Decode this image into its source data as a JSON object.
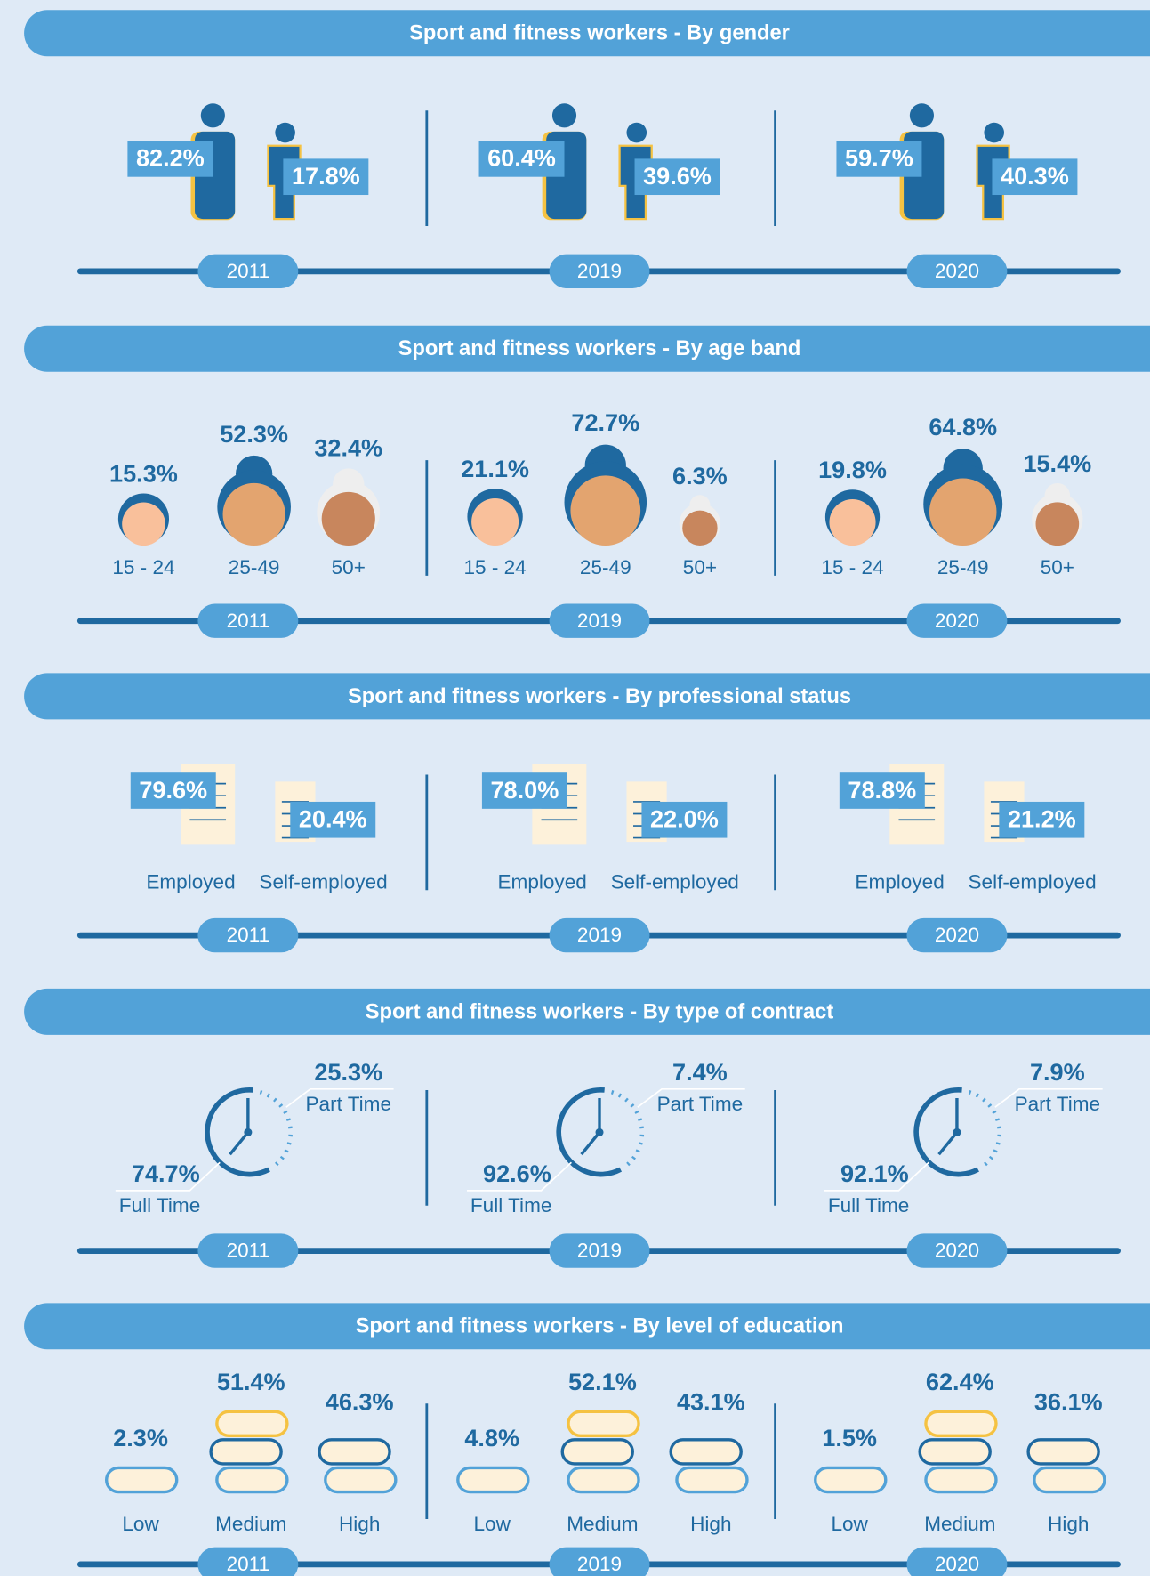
{
  "sections": [
    {
      "title": "Sport and fitness workers - By gender",
      "years": [
        {
          "year": "2011",
          "items": [
            {
              "value": "82.2%"
            },
            {
              "value": "17.8%"
            }
          ]
        },
        {
          "year": "2019",
          "items": [
            {
              "value": "60.4%"
            },
            {
              "value": "39.6%"
            }
          ]
        },
        {
          "year": "2020",
          "items": [
            {
              "value": "59.7%"
            },
            {
              "value": "40.3%"
            }
          ]
        }
      ]
    },
    {
      "title": "Sport and fitness workers - By age band",
      "years": [
        {
          "year": "2011",
          "items": [
            {
              "value": "15.3%",
              "label": "15 - 24"
            },
            {
              "value": "52.3%",
              "label": "25-49"
            },
            {
              "value": "32.4%",
              "label": "50+"
            }
          ]
        },
        {
          "year": "2019",
          "items": [
            {
              "value": "21.1%",
              "label": "15 - 24"
            },
            {
              "value": "72.7%",
              "label": "25-49"
            },
            {
              "value": "6.3%",
              "label": "50+"
            }
          ]
        },
        {
          "year": "2020",
          "items": [
            {
              "value": "19.8%",
              "label": "15 - 24"
            },
            {
              "value": "64.8%",
              "label": "25-49"
            },
            {
              "value": "15.4%",
              "label": "50+"
            }
          ]
        }
      ]
    },
    {
      "title": "Sport and fitness workers - By professional status",
      "years": [
        {
          "year": "2011",
          "items": [
            {
              "value": "79.6%",
              "label": "Employed"
            },
            {
              "value": "20.4%",
              "label": "Self-employed"
            }
          ]
        },
        {
          "year": "2019",
          "items": [
            {
              "value": "78.0%",
              "label": "Employed"
            },
            {
              "value": "22.0%",
              "label": "Self-employed"
            }
          ]
        },
        {
          "year": "2020",
          "items": [
            {
              "value": "78.8%",
              "label": "Employed"
            },
            {
              "value": "21.2%",
              "label": "Self-employed"
            }
          ]
        }
      ]
    },
    {
      "title": "Sport and fitness workers - By type of contract",
      "years": [
        {
          "year": "2011",
          "items": [
            {
              "value": "74.7%",
              "label": "Full Time"
            },
            {
              "value": "25.3%",
              "label": "Part Time"
            }
          ]
        },
        {
          "year": "2019",
          "items": [
            {
              "value": "92.6%",
              "label": "Full Time"
            },
            {
              "value": "7.4%",
              "label": "Part Time"
            }
          ]
        },
        {
          "year": "2020",
          "items": [
            {
              "value": "92.1%",
              "label": "Full Time"
            },
            {
              "value": "7.9%",
              "label": "Part Time"
            }
          ]
        }
      ]
    },
    {
      "title": "Sport and fitness workers - By level of education",
      "years": [
        {
          "year": "2011",
          "items": [
            {
              "value": "2.3%",
              "label": "Low"
            },
            {
              "value": "51.4%",
              "label": "Medium"
            },
            {
              "value": "46.3%",
              "label": "High"
            }
          ]
        },
        {
          "year": "2019",
          "items": [
            {
              "value": "4.8%",
              "label": "Low"
            },
            {
              "value": "52.1%",
              "label": "Medium"
            },
            {
              "value": "43.1%",
              "label": "High"
            }
          ]
        },
        {
          "year": "2020",
          "items": [
            {
              "value": "1.5%",
              "label": "Low"
            },
            {
              "value": "62.4%",
              "label": "Medium"
            },
            {
              "value": "36.1%",
              "label": "High"
            }
          ]
        }
      ]
    }
  ]
}
